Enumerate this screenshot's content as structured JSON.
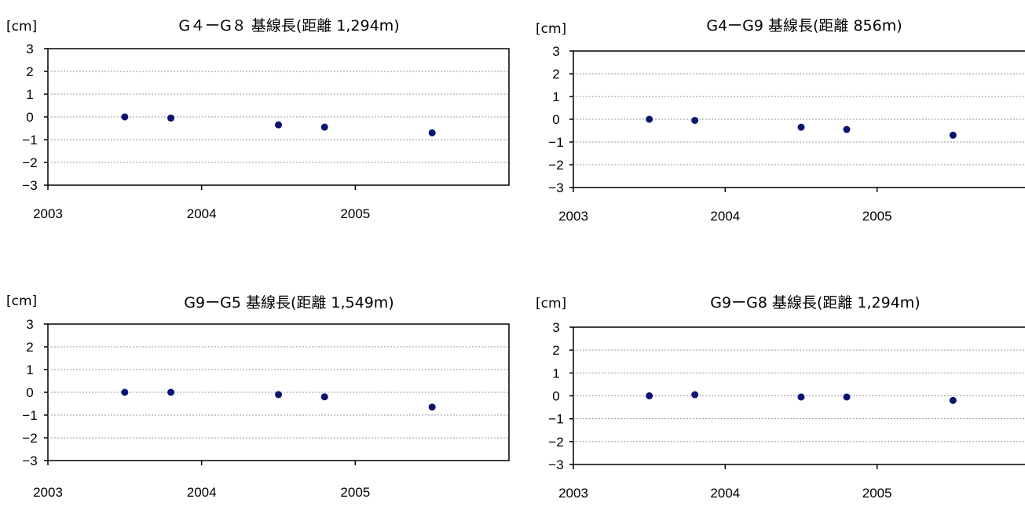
{
  "chart_data": [
    {
      "type": "scatter",
      "title": "G４ーG８ 基線長(距離 1,294m)",
      "unit_label": "[cm]",
      "xlim": [
        2003,
        2006
      ],
      "ylim": [
        -3,
        3
      ],
      "xticks": [
        "2003",
        "2004",
        "2005"
      ],
      "yticks": [
        "3",
        "2",
        "1",
        "0",
        "−1",
        "−2",
        "−3"
      ],
      "grid": true,
      "color": "#0a1470",
      "x": [
        2003.5,
        2003.8,
        2004.5,
        2004.8,
        2005.5
      ],
      "y": [
        0.0,
        -0.05,
        -0.35,
        -0.45,
        -0.7
      ]
    },
    {
      "type": "scatter",
      "title": "G4ーG9 基線長(距離 856m)",
      "unit_label": "[cm]",
      "xlim": [
        2003,
        2006
      ],
      "ylim": [
        -3,
        3
      ],
      "xticks": [
        "2003",
        "2004",
        "2005"
      ],
      "yticks": [
        "3",
        "2",
        "1",
        "0",
        "−1",
        "−2",
        "−3"
      ],
      "grid": true,
      "color": "#0a1470",
      "x": [
        2003.5,
        2003.8,
        2004.5,
        2004.8,
        2005.5
      ],
      "y": [
        0.0,
        -0.05,
        -0.35,
        -0.45,
        -0.7
      ]
    },
    {
      "type": "scatter",
      "title": "G9ーG5 基線長(距離 1,549m)",
      "unit_label": "[cm]",
      "xlim": [
        2003,
        2006
      ],
      "ylim": [
        -3,
        3
      ],
      "xticks": [
        "2003",
        "2004",
        "2005"
      ],
      "yticks": [
        "3",
        "2",
        "1",
        "0",
        "−1",
        "−2",
        "−3"
      ],
      "grid": true,
      "color": "#0a1470",
      "x": [
        2003.5,
        2003.8,
        2004.5,
        2004.8,
        2005.5
      ],
      "y": [
        0.0,
        0.0,
        -0.1,
        -0.2,
        -0.65
      ]
    },
    {
      "type": "scatter",
      "title": "G9ーG8 基線長(距離 1,294m)",
      "unit_label": "[cm]",
      "xlim": [
        2003,
        2006
      ],
      "ylim": [
        -3,
        3
      ],
      "xticks": [
        "2003",
        "2004",
        "2005"
      ],
      "yticks": [
        "3",
        "2",
        "1",
        "0",
        "−1",
        "−2",
        "−3"
      ],
      "grid": true,
      "color": "#0a1470",
      "x": [
        2003.5,
        2003.8,
        2004.5,
        2004.8,
        2005.5
      ],
      "y": [
        0.0,
        0.05,
        -0.05,
        -0.05,
        -0.2
      ]
    }
  ]
}
